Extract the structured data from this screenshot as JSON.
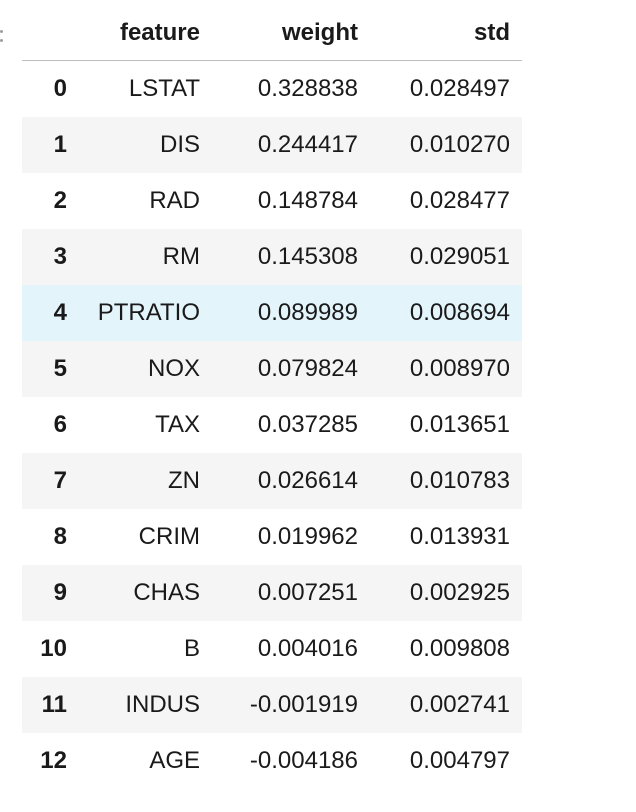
{
  "table": {
    "columns": [
      "",
      "feature",
      "weight",
      "std"
    ],
    "rows": [
      {
        "index": "0",
        "feature": "LSTAT",
        "weight": "0.328838",
        "std": "0.028497"
      },
      {
        "index": "1",
        "feature": "DIS",
        "weight": "0.244417",
        "std": "0.010270"
      },
      {
        "index": "2",
        "feature": "RAD",
        "weight": "0.148784",
        "std": "0.028477"
      },
      {
        "index": "3",
        "feature": "RM",
        "weight": "0.145308",
        "std": "0.029051"
      },
      {
        "index": "4",
        "feature": "PTRATIO",
        "weight": "0.089989",
        "std": "0.008694"
      },
      {
        "index": "5",
        "feature": "NOX",
        "weight": "0.079824",
        "std": "0.008970"
      },
      {
        "index": "6",
        "feature": "TAX",
        "weight": "0.037285",
        "std": "0.013651"
      },
      {
        "index": "7",
        "feature": "ZN",
        "weight": "0.026614",
        "std": "0.010783"
      },
      {
        "index": "8",
        "feature": "CRIM",
        "weight": "0.019962",
        "std": "0.013931"
      },
      {
        "index": "9",
        "feature": "CHAS",
        "weight": "0.007251",
        "std": "0.002925"
      },
      {
        "index": "10",
        "feature": "B",
        "weight": "0.004016",
        "std": "0.009808"
      },
      {
        "index": "11",
        "feature": "INDUS",
        "weight": "-0.001919",
        "std": "0.002741"
      },
      {
        "index": "12",
        "feature": "AGE",
        "weight": "-0.004186",
        "std": "0.004797"
      }
    ],
    "hovered_row": 4
  },
  "colors": {
    "row_stripe": "#f5f5f5",
    "row_hover": "#e3f4fb",
    "header_border": "#bdbdbd"
  }
}
